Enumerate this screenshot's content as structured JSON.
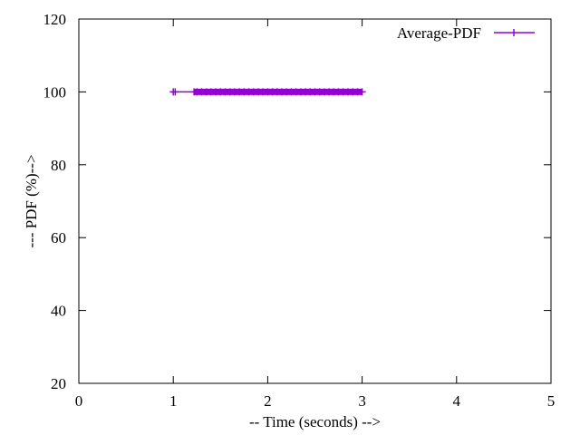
{
  "chart_data": {
    "type": "line",
    "title": "",
    "xlabel": "-- Time (seconds) -->",
    "ylabel": "--- PDF (%)-->",
    "xlim": [
      0,
      5
    ],
    "ylim": [
      20,
      120
    ],
    "xticks": [
      0,
      1,
      2,
      3,
      4,
      5
    ],
    "yticks": [
      20,
      40,
      60,
      80,
      100,
      120
    ],
    "xtick_labels": [
      "0",
      "1",
      "2",
      "3",
      "4",
      "5"
    ],
    "ytick_labels": [
      "20",
      "40",
      "60",
      "80",
      "100",
      "120"
    ],
    "grid": false,
    "legend": {
      "position": "top-right"
    },
    "series": [
      {
        "name": "Average-PDF",
        "color": "#9400d3",
        "marker": "plus",
        "x": [
          1.0,
          1.02,
          1.22,
          1.25,
          1.3,
          1.35,
          1.4,
          1.45,
          1.5,
          1.55,
          1.6,
          1.65,
          1.7,
          1.75,
          1.8,
          1.85,
          1.9,
          1.95,
          2.0,
          2.05,
          2.1,
          2.15,
          2.2,
          2.25,
          2.3,
          2.35,
          2.4,
          2.45,
          2.5,
          2.55,
          2.6,
          2.65,
          2.7,
          2.75,
          2.8,
          2.85,
          2.9,
          2.95,
          3.0
        ],
        "y": [
          100,
          100,
          100,
          100,
          100,
          100,
          100,
          100,
          100,
          100,
          100,
          100,
          100,
          100,
          100,
          100,
          100,
          100,
          100,
          100,
          100,
          100,
          100,
          100,
          100,
          100,
          100,
          100,
          100,
          100,
          100,
          100,
          100,
          100,
          100,
          100,
          100,
          100,
          100
        ]
      }
    ]
  }
}
